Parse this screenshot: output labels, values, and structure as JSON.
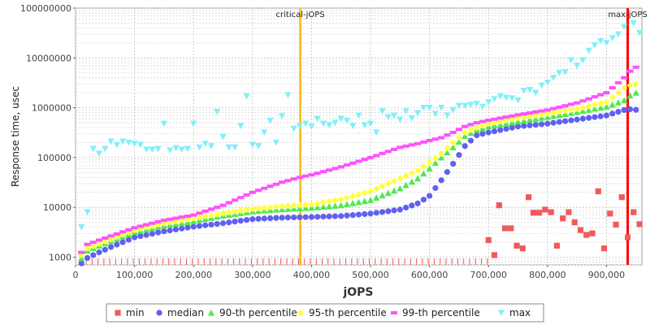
{
  "chart_data": {
    "type": "scatter",
    "xlabel": "jOPS",
    "ylabel": "Response time, usec",
    "x_scale": "linear",
    "y_scale": "log",
    "xlim": [
      0,
      960000
    ],
    "ylim": [
      700,
      100000000
    ],
    "x_ticks": [
      {
        "value": 0,
        "label": "0"
      },
      {
        "value": 100000,
        "label": "100,000"
      },
      {
        "value": 200000,
        "label": "200,000"
      },
      {
        "value": 300000,
        "label": "300,000"
      },
      {
        "value": 400000,
        "label": "400,000"
      },
      {
        "value": 500000,
        "label": "500,000"
      },
      {
        "value": 600000,
        "label": "600,000"
      },
      {
        "value": 700000,
        "label": "700,000"
      },
      {
        "value": 800000,
        "label": "800,000"
      },
      {
        "value": 900000,
        "label": "900,000"
      }
    ],
    "y_ticks": [
      {
        "value": 1000,
        "label": "1000"
      },
      {
        "value": 10000,
        "label": "10000"
      },
      {
        "value": 100000,
        "label": "100000"
      },
      {
        "value": 1000000,
        "label": "1000000"
      },
      {
        "value": 10000000,
        "label": "10000000"
      },
      {
        "value": 100000000,
        "label": "100000000"
      }
    ],
    "grid": true,
    "legend_position": "bottom",
    "reference_lines": [
      {
        "label": "critical-jOPS",
        "x": 381000,
        "color": "#ffc020"
      },
      {
        "label": "max-jOPS",
        "x": 936000,
        "color": "#ff0000"
      }
    ],
    "series": [
      {
        "name": "min",
        "color": "#f05a5a",
        "marker": "square",
        "points": [
          [
            700000,
            2200
          ],
          [
            710000,
            1100
          ],
          [
            718000,
            11000
          ],
          [
            728000,
            3800
          ],
          [
            738000,
            3800
          ],
          [
            748000,
            1700
          ],
          [
            758000,
            1500
          ],
          [
            768000,
            16000
          ],
          [
            776000,
            7800
          ],
          [
            786000,
            7800
          ],
          [
            796000,
            9000
          ],
          [
            806000,
            8000
          ],
          [
            816000,
            1700
          ],
          [
            826000,
            6000
          ],
          [
            836000,
            8000
          ],
          [
            846000,
            5000
          ],
          [
            856000,
            3500
          ],
          [
            866000,
            2800
          ],
          [
            876000,
            3000
          ],
          [
            886000,
            21000
          ],
          [
            896000,
            1500
          ],
          [
            906000,
            7500
          ],
          [
            916000,
            4500
          ],
          [
            926000,
            16000
          ],
          [
            936000,
            2500
          ],
          [
            946000,
            8000
          ],
          [
            956000,
            4600
          ]
        ],
        "floor_markers": {
          "x_from": 8000,
          "x_to": 700000,
          "step": 10000
        }
      },
      {
        "name": "median",
        "color": "#6060f0",
        "marker": "circle",
        "x_from": 10000,
        "x_to": 956000,
        "step": 10000,
        "key_values": [
          [
            10000,
            750
          ],
          [
            15000,
            900
          ],
          [
            30000,
            1100
          ],
          [
            60000,
            1600
          ],
          [
            100000,
            2500
          ],
          [
            150000,
            3300
          ],
          [
            200000,
            4100
          ],
          [
            250000,
            4800
          ],
          [
            300000,
            5800
          ],
          [
            350000,
            6200
          ],
          [
            400000,
            6400
          ],
          [
            450000,
            6700
          ],
          [
            500000,
            7500
          ],
          [
            550000,
            9000
          ],
          [
            580000,
            12000
          ],
          [
            600000,
            17000
          ],
          [
            620000,
            35000
          ],
          [
            640000,
            75000
          ],
          [
            660000,
            170000
          ],
          [
            680000,
            280000
          ],
          [
            700000,
            320000
          ],
          [
            750000,
            420000
          ],
          [
            800000,
            480000
          ],
          [
            850000,
            580000
          ],
          [
            900000,
            700000
          ],
          [
            930000,
            900000
          ],
          [
            946000,
            950000
          ],
          [
            956000,
            850000
          ]
        ]
      },
      {
        "name": "90-th percentile",
        "color": "#50e850",
        "marker": "triangle-up",
        "x_from": 10000,
        "x_to": 956000,
        "step": 10000,
        "key_values": [
          [
            10000,
            950
          ],
          [
            20000,
            1350
          ],
          [
            40000,
            1700
          ],
          [
            100000,
            3200
          ],
          [
            150000,
            4300
          ],
          [
            200000,
            5300
          ],
          [
            250000,
            6800
          ],
          [
            300000,
            8300
          ],
          [
            350000,
            9200
          ],
          [
            400000,
            9800
          ],
          [
            450000,
            11000
          ],
          [
            500000,
            14000
          ],
          [
            550000,
            24000
          ],
          [
            580000,
            38000
          ],
          [
            600000,
            60000
          ],
          [
            620000,
            100000
          ],
          [
            640000,
            160000
          ],
          [
            660000,
            270000
          ],
          [
            680000,
            360000
          ],
          [
            700000,
            420000
          ],
          [
            750000,
            530000
          ],
          [
            800000,
            650000
          ],
          [
            850000,
            820000
          ],
          [
            900000,
            1050000
          ],
          [
            930000,
            1400000
          ],
          [
            946000,
            2000000
          ],
          [
            956000,
            2000000
          ]
        ]
      },
      {
        "name": "95-th percentile",
        "color": "#ffff40",
        "marker": "diamond",
        "x_from": 10000,
        "x_to": 956000,
        "step": 10000,
        "key_values": [
          [
            10000,
            1100
          ],
          [
            20000,
            1500
          ],
          [
            40000,
            1850
          ],
          [
            100000,
            3500
          ],
          [
            150000,
            4800
          ],
          [
            200000,
            6000
          ],
          [
            250000,
            7600
          ],
          [
            300000,
            9300
          ],
          [
            350000,
            10500
          ],
          [
            400000,
            11500
          ],
          [
            450000,
            14500
          ],
          [
            500000,
            21000
          ],
          [
            550000,
            38000
          ],
          [
            580000,
            55000
          ],
          [
            600000,
            80000
          ],
          [
            620000,
            120000
          ],
          [
            640000,
            200000
          ],
          [
            660000,
            320000
          ],
          [
            680000,
            400000
          ],
          [
            700000,
            480000
          ],
          [
            750000,
            620000
          ],
          [
            800000,
            760000
          ],
          [
            850000,
            950000
          ],
          [
            900000,
            1300000
          ],
          [
            930000,
            2500000
          ],
          [
            946000,
            3000000
          ],
          [
            956000,
            3000000
          ]
        ]
      },
      {
        "name": "99-th percentile",
        "color": "#ff50ff",
        "marker": "dash",
        "x_from": 10000,
        "x_to": 956000,
        "step": 10000,
        "key_values": [
          [
            10000,
            1250
          ],
          [
            20000,
            1800
          ],
          [
            40000,
            2200
          ],
          [
            100000,
            3900
          ],
          [
            150000,
            5500
          ],
          [
            200000,
            7000
          ],
          [
            250000,
            11000
          ],
          [
            300000,
            20000
          ],
          [
            350000,
            32000
          ],
          [
            380000,
            40000
          ],
          [
            400000,
            45000
          ],
          [
            450000,
            65000
          ],
          [
            500000,
            100000
          ],
          [
            550000,
            160000
          ],
          [
            580000,
            190000
          ],
          [
            600000,
            220000
          ],
          [
            620000,
            250000
          ],
          [
            640000,
            320000
          ],
          [
            660000,
            420000
          ],
          [
            680000,
            500000
          ],
          [
            700000,
            560000
          ],
          [
            750000,
            720000
          ],
          [
            800000,
            900000
          ],
          [
            850000,
            1250000
          ],
          [
            900000,
            2000000
          ],
          [
            930000,
            4000000
          ],
          [
            946000,
            6500000
          ],
          [
            956000,
            6500000
          ]
        ]
      },
      {
        "name": "max",
        "color": "#80f0f8",
        "marker": "triangle-down",
        "points": [
          [
            10000,
            4000
          ],
          [
            20000,
            8000
          ],
          [
            30000,
            150000
          ],
          [
            40000,
            120000
          ],
          [
            50000,
            150000
          ],
          [
            60000,
            210000
          ],
          [
            70000,
            180000
          ],
          [
            80000,
            210000
          ],
          [
            90000,
            200000
          ],
          [
            100000,
            190000
          ],
          [
            110000,
            180000
          ],
          [
            120000,
            145000
          ],
          [
            130000,
            145000
          ],
          [
            140000,
            150000
          ],
          [
            150000,
            480000
          ],
          [
            160000,
            140000
          ],
          [
            170000,
            155000
          ],
          [
            180000,
            145000
          ],
          [
            190000,
            150000
          ],
          [
            200000,
            480000
          ],
          [
            210000,
            160000
          ],
          [
            220000,
            190000
          ],
          [
            230000,
            170000
          ],
          [
            240000,
            830000
          ],
          [
            250000,
            260000
          ],
          [
            260000,
            160000
          ],
          [
            270000,
            160000
          ],
          [
            280000,
            430000
          ],
          [
            290000,
            1700000
          ],
          [
            300000,
            180000
          ],
          [
            310000,
            170000
          ],
          [
            320000,
            320000
          ],
          [
            330000,
            550000
          ],
          [
            340000,
            200000
          ],
          [
            350000,
            680000
          ],
          [
            360000,
            1800000
          ],
          [
            370000,
            380000
          ],
          [
            380000,
            430000
          ],
          [
            390000,
            480000
          ],
          [
            400000,
            420000
          ],
          [
            410000,
            600000
          ],
          [
            420000,
            480000
          ],
          [
            430000,
            450000
          ],
          [
            440000,
            500000
          ],
          [
            450000,
            600000
          ],
          [
            460000,
            550000
          ],
          [
            470000,
            430000
          ],
          [
            480000,
            700000
          ],
          [
            490000,
            450000
          ],
          [
            500000,
            480000
          ],
          [
            510000,
            320000
          ],
          [
            520000,
            850000
          ],
          [
            530000,
            650000
          ],
          [
            540000,
            700000
          ],
          [
            550000,
            580000
          ],
          [
            560000,
            850000
          ],
          [
            570000,
            620000
          ],
          [
            580000,
            780000
          ],
          [
            590000,
            1000000
          ],
          [
            600000,
            1000000
          ],
          [
            610000,
            750000
          ],
          [
            620000,
            1000000
          ],
          [
            630000,
            700000
          ],
          [
            640000,
            900000
          ],
          [
            650000,
            1100000
          ],
          [
            660000,
            1100000
          ],
          [
            670000,
            1150000
          ],
          [
            680000,
            1200000
          ],
          [
            690000,
            1050000
          ],
          [
            700000,
            1300000
          ],
          [
            710000,
            1500000
          ],
          [
            720000,
            1700000
          ],
          [
            730000,
            1600000
          ],
          [
            740000,
            1550000
          ],
          [
            750000,
            1400000
          ],
          [
            760000,
            2200000
          ],
          [
            770000,
            2300000
          ],
          [
            780000,
            2000000
          ],
          [
            790000,
            2800000
          ],
          [
            800000,
            3200000
          ],
          [
            810000,
            4000000
          ],
          [
            820000,
            5000000
          ],
          [
            830000,
            5200000
          ],
          [
            840000,
            9000000
          ],
          [
            850000,
            7000000
          ],
          [
            860000,
            9000000
          ],
          [
            870000,
            14000000
          ],
          [
            880000,
            18000000
          ],
          [
            890000,
            22000000
          ],
          [
            900000,
            20000000
          ],
          [
            910000,
            25000000
          ],
          [
            920000,
            30000000
          ],
          [
            930000,
            42000000
          ],
          [
            946000,
            50000000
          ],
          [
            956000,
            32000000
          ]
        ]
      }
    ]
  }
}
